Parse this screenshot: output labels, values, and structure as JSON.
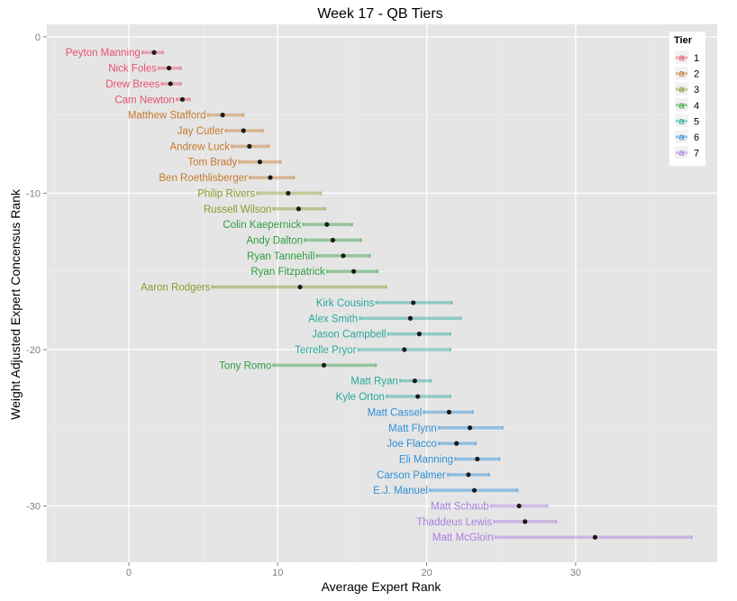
{
  "chart_data": {
    "type": "scatter",
    "title": "Week 17 - QB Tiers",
    "xlabel": "Average Expert Rank",
    "ylabel": "Weight Adjusted Expert Concensus Rank",
    "xlim": [
      -5.5,
      39.5
    ],
    "ylim": [
      -33.6,
      0.8
    ],
    "xticks": [
      0,
      10,
      20,
      30
    ],
    "yticks": [
      0,
      -10,
      -20,
      -30
    ],
    "xtick_labels": [
      "0",
      "10",
      "20",
      "30"
    ],
    "ytick_labels": [
      "0",
      "-10",
      "-20",
      "-30"
    ],
    "grid": true,
    "legend": {
      "title": "Tier",
      "position": "top-right",
      "glyph": "a",
      "entries": [
        {
          "label": "1",
          "color": "#e7526f"
        },
        {
          "label": "2",
          "color": "#c57a2e"
        },
        {
          "label": "3",
          "color": "#8a9a2e"
        },
        {
          "label": "4",
          "color": "#2e9e3f"
        },
        {
          "label": "5",
          "color": "#29a89a"
        },
        {
          "label": "6",
          "color": "#2f8fd8"
        },
        {
          "label": "7",
          "color": "#a97ee0"
        }
      ]
    },
    "points": [
      {
        "name": "Peyton Manning",
        "tier": 1,
        "rank": -1,
        "mean": 1.7,
        "low": 0.9,
        "high": 2.3
      },
      {
        "name": "Nick Foles",
        "tier": 1,
        "rank": -2,
        "mean": 2.7,
        "low": 2.0,
        "high": 3.5
      },
      {
        "name": "Drew Brees",
        "tier": 1,
        "rank": -3,
        "mean": 2.8,
        "low": 2.2,
        "high": 3.5
      },
      {
        "name": "Cam Newton",
        "tier": 1,
        "rank": -4,
        "mean": 3.6,
        "low": 3.2,
        "high": 4.1
      },
      {
        "name": "Matthew Stafford",
        "tier": 2,
        "rank": -5,
        "mean": 6.3,
        "low": 5.3,
        "high": 7.7
      },
      {
        "name": "Jay Cutler",
        "tier": 2,
        "rank": -6,
        "mean": 7.7,
        "low": 6.5,
        "high": 9.0
      },
      {
        "name": "Andrew Luck",
        "tier": 2,
        "rank": -7,
        "mean": 8.1,
        "low": 6.9,
        "high": 9.4
      },
      {
        "name": "Tom Brady",
        "tier": 2,
        "rank": -8,
        "mean": 8.8,
        "low": 7.4,
        "high": 10.2
      },
      {
        "name": "Ben Roethlisberger",
        "tier": 2,
        "rank": -9,
        "mean": 9.5,
        "low": 8.1,
        "high": 11.1
      },
      {
        "name": "Philip Rivers",
        "tier": 3,
        "rank": -10,
        "mean": 10.7,
        "low": 8.6,
        "high": 12.9
      },
      {
        "name": "Russell Wilson",
        "tier": 3,
        "rank": -11,
        "mean": 11.4,
        "low": 9.7,
        "high": 13.2
      },
      {
        "name": "Colin Kaepernick",
        "tier": 4,
        "rank": -12,
        "mean": 13.3,
        "low": 11.7,
        "high": 15.0
      },
      {
        "name": "Andy Dalton",
        "tier": 4,
        "rank": -13,
        "mean": 13.7,
        "low": 11.8,
        "high": 15.6
      },
      {
        "name": "Ryan Tannehill",
        "tier": 4,
        "rank": -14,
        "mean": 14.4,
        "low": 12.6,
        "high": 16.2
      },
      {
        "name": "Ryan Fitzpatrick",
        "tier": 4,
        "rank": -15,
        "mean": 15.1,
        "low": 13.3,
        "high": 16.7
      },
      {
        "name": "Aaron Rodgers",
        "tier": 3,
        "rank": -16,
        "mean": 11.5,
        "low": 5.6,
        "high": 17.3
      },
      {
        "name": "Kirk Cousins",
        "tier": 5,
        "rank": -17,
        "mean": 19.1,
        "low": 16.6,
        "high": 21.7
      },
      {
        "name": "Alex Smith",
        "tier": 5,
        "rank": -18,
        "mean": 18.9,
        "low": 15.5,
        "high": 22.3
      },
      {
        "name": "Jason Campbell",
        "tier": 5,
        "rank": -19,
        "mean": 19.5,
        "low": 17.4,
        "high": 21.6
      },
      {
        "name": "Terrelle Pryor",
        "tier": 5,
        "rank": -20,
        "mean": 18.5,
        "low": 15.4,
        "high": 21.6
      },
      {
        "name": "Tony Romo",
        "tier": 4,
        "rank": -21,
        "mean": 13.1,
        "low": 9.7,
        "high": 16.6
      },
      {
        "name": "Matt Ryan",
        "tier": 5,
        "rank": -22,
        "mean": 19.2,
        "low": 18.2,
        "high": 20.3
      },
      {
        "name": "Kyle Orton",
        "tier": 5,
        "rank": -23,
        "mean": 19.4,
        "low": 17.3,
        "high": 21.6
      },
      {
        "name": "Matt Cassel",
        "tier": 6,
        "rank": -24,
        "mean": 21.5,
        "low": 19.8,
        "high": 23.1
      },
      {
        "name": "Matt Flynn",
        "tier": 6,
        "rank": -25,
        "mean": 22.9,
        "low": 20.8,
        "high": 25.1
      },
      {
        "name": "Joe Flacco",
        "tier": 6,
        "rank": -26,
        "mean": 22.0,
        "low": 20.8,
        "high": 23.3
      },
      {
        "name": "Eli Manning",
        "tier": 6,
        "rank": -27,
        "mean": 23.4,
        "low": 21.9,
        "high": 24.9
      },
      {
        "name": "Carson Palmer",
        "tier": 6,
        "rank": -28,
        "mean": 22.8,
        "low": 21.4,
        "high": 24.2
      },
      {
        "name": "E.J. Manuel",
        "tier": 6,
        "rank": -29,
        "mean": 23.2,
        "low": 20.2,
        "high": 26.1
      },
      {
        "name": "Matt Schaub",
        "tier": 7,
        "rank": -30,
        "mean": 26.2,
        "low": 24.3,
        "high": 28.1
      },
      {
        "name": "Thaddeus Lewis",
        "tier": 7,
        "rank": -31,
        "mean": 26.6,
        "low": 24.5,
        "high": 28.7
      },
      {
        "name": "Matt McGloin",
        "tier": 7,
        "rank": -32,
        "mean": 31.3,
        "low": 24.6,
        "high": 37.8
      }
    ]
  }
}
